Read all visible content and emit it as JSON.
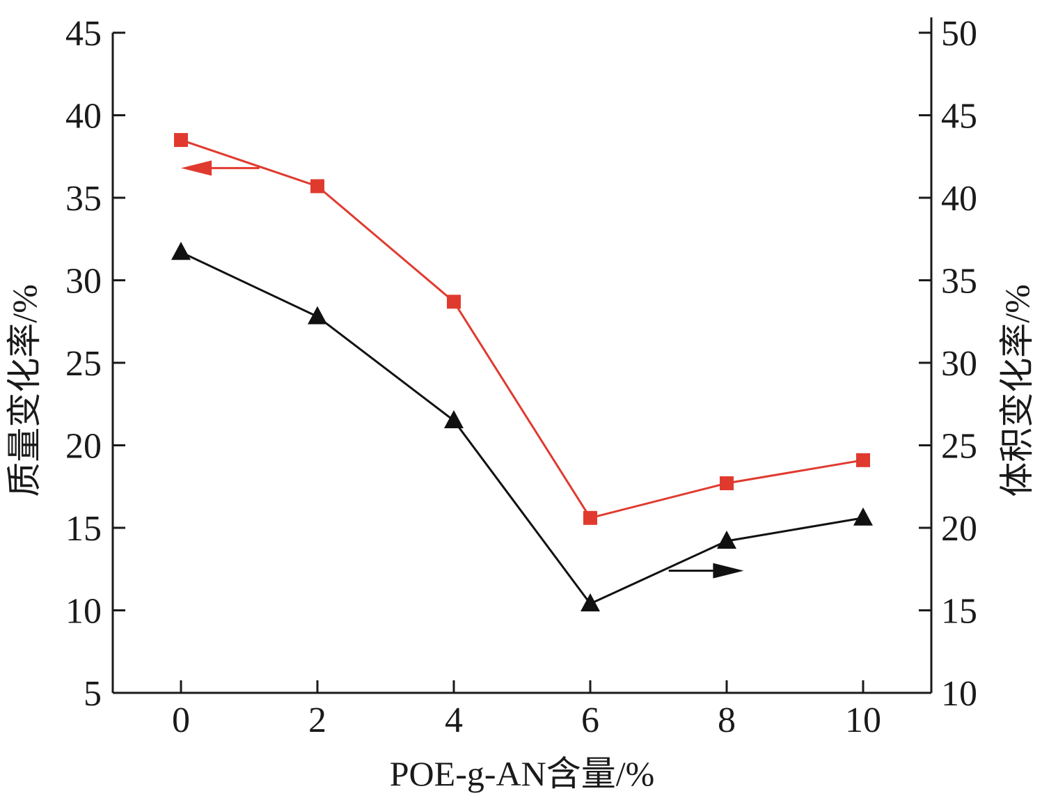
{
  "chart_data": {
    "type": "line",
    "xlabel": "POE-g-AN含量/%",
    "ylabel_left": "质量变化率/%",
    "ylabel_right": "体积变化率/%",
    "x": [
      0,
      2,
      4,
      6,
      8,
      10
    ],
    "xlim": [
      -1,
      11
    ],
    "xticks": [
      "0",
      "2",
      "4",
      "6",
      "8",
      "10"
    ],
    "ylim_left": [
      5,
      45
    ],
    "yticks_left": [
      "5",
      "10",
      "15",
      "20",
      "25",
      "30",
      "35",
      "40",
      "45"
    ],
    "ylim_right": [
      10,
      50
    ],
    "yticks_right": [
      "10",
      "15",
      "20",
      "25",
      "30",
      "35",
      "40",
      "45",
      "50"
    ],
    "grid": false,
    "series": [
      {
        "axis": "left",
        "marker": "square",
        "color": "#e03a2f",
        "values": [
          38.5,
          35.7,
          28.7,
          15.6,
          17.7,
          19.1
        ]
      },
      {
        "axis": "right",
        "marker": "triangle",
        "color": "#111111",
        "values": [
          36.7,
          32.8,
          26.5,
          15.4,
          19.2,
          20.6
        ]
      }
    ],
    "annotations": [
      {
        "type": "arrow",
        "direction": "left",
        "target_axis": "left",
        "color": "#e03a2f"
      },
      {
        "type": "arrow",
        "direction": "right",
        "target_axis": "right",
        "color": "#111111"
      }
    ]
  }
}
